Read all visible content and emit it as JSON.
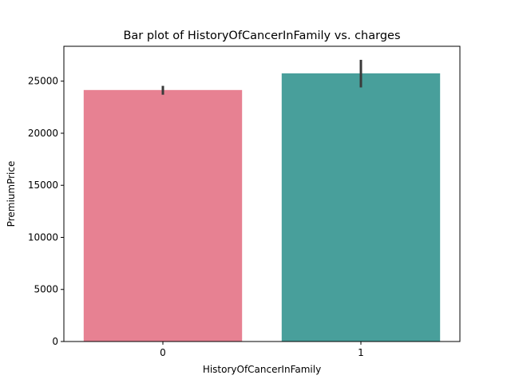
{
  "chart_data": {
    "type": "bar",
    "title": "Bar plot of HistoryOfCancerInFamily vs. charges",
    "xlabel": "HistoryOfCancerInFamily",
    "ylabel": "PremiumPrice",
    "categories": [
      "0",
      "1"
    ],
    "values": [
      24150,
      25750
    ],
    "error_bars": [
      {
        "low": 23700,
        "high": 24550
      },
      {
        "low": 24400,
        "high": 27050
      }
    ],
    "colors": [
      "#e78192",
      "#489f9b"
    ],
    "error_bar_color": "#3a3a3a",
    "ylim": [
      0,
      28350
    ],
    "yticks": [
      0,
      5000,
      10000,
      15000,
      20000,
      25000
    ],
    "ytick_labels": [
      "0",
      "5000",
      "10000",
      "15000",
      "20000",
      "25000"
    ],
    "grid": false,
    "legend": "none"
  }
}
